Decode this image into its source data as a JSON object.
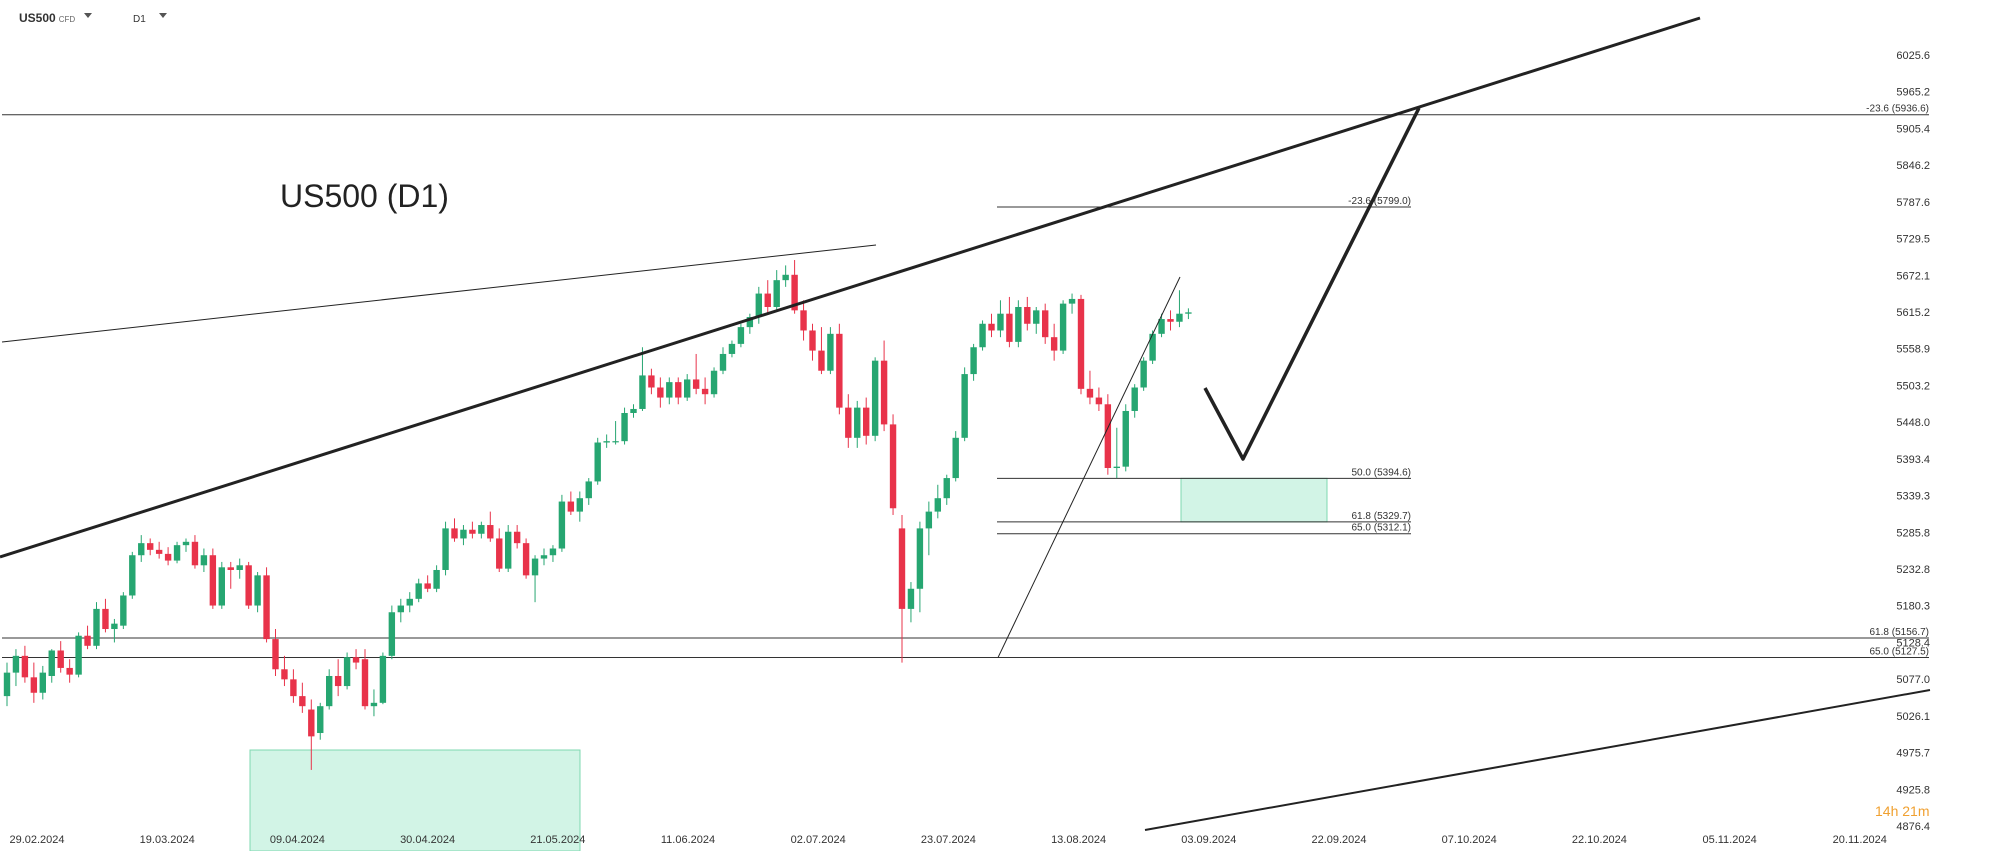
{
  "header": {
    "symbol": "US500",
    "symbol_type": "CFD",
    "timeframe": "D1"
  },
  "title": "US500 (D1)",
  "timer": "14h 21m",
  "colors": {
    "up_candle": "#26a671",
    "down_candle": "#e8334a",
    "zone_fill": "#d2f4e6",
    "zone_border": "#7fd8b0",
    "line": "#222222",
    "timer": "#f0a030"
  },
  "chart_data": {
    "type": "candlestick",
    "instrument": "US500",
    "timeframe": "D1",
    "y_ticks": [
      "6025.6",
      "5965.2",
      "5905.4",
      "5846.2",
      "5787.6",
      "5729.5",
      "5672.1",
      "5615.2",
      "5558.9",
      "5503.2",
      "5448.0",
      "5393.4",
      "5339.3",
      "5285.8",
      "5232.8",
      "5180.3",
      "5128.4",
      "5077.0",
      "5026.1",
      "4975.7",
      "4925.8",
      "4876.4"
    ],
    "x_ticks": [
      "29.02.2024",
      "19.03.2024",
      "09.04.2024",
      "30.04.2024",
      "21.05.2024",
      "11.06.2024",
      "02.07.2024",
      "23.07.2024",
      "13.08.2024",
      "03.09.2024",
      "22.09.2024",
      "07.10.2024",
      "22.10.2024",
      "05.11.2024",
      "20.11.2024"
    ],
    "fib_levels": [
      {
        "label": "-23.6 (5936.6)",
        "price": 5936.6
      },
      {
        "label": "-23.6 (5799.0)",
        "price": 5799.0
      },
      {
        "label": "50.0 (5394.6)",
        "price": 5394.6
      },
      {
        "label": "61.8 (5329.7)",
        "price": 5329.7
      },
      {
        "label": "65.0 (5312.1)",
        "price": 5312.1
      },
      {
        "label": "61.8 (5156.7)",
        "price": 5156.7
      },
      {
        "label": "65.0 (5127.5)",
        "price": 5127.5
      }
    ],
    "candles": [
      {
        "o": 5070,
        "h": 5120,
        "l": 5055,
        "c": 5105
      },
      {
        "o": 5105,
        "h": 5140,
        "l": 5085,
        "c": 5130
      },
      {
        "o": 5130,
        "h": 5145,
        "l": 5090,
        "c": 5098
      },
      {
        "o": 5098,
        "h": 5120,
        "l": 5060,
        "c": 5075
      },
      {
        "o": 5075,
        "h": 5115,
        "l": 5065,
        "c": 5105
      },
      {
        "o": 5100,
        "h": 5140,
        "l": 5090,
        "c": 5138
      },
      {
        "o": 5138,
        "h": 5152,
        "l": 5105,
        "c": 5112
      },
      {
        "o": 5112,
        "h": 5125,
        "l": 5090,
        "c": 5102
      },
      {
        "o": 5102,
        "h": 5165,
        "l": 5098,
        "c": 5160
      },
      {
        "o": 5160,
        "h": 5175,
        "l": 5140,
        "c": 5145
      },
      {
        "o": 5145,
        "h": 5210,
        "l": 5140,
        "c": 5200
      },
      {
        "o": 5200,
        "h": 5215,
        "l": 5165,
        "c": 5170
      },
      {
        "o": 5170,
        "h": 5185,
        "l": 5150,
        "c": 5178
      },
      {
        "o": 5175,
        "h": 5225,
        "l": 5170,
        "c": 5220
      },
      {
        "o": 5220,
        "h": 5285,
        "l": 5215,
        "c": 5280
      },
      {
        "o": 5280,
        "h": 5310,
        "l": 5270,
        "c": 5298
      },
      {
        "o": 5298,
        "h": 5305,
        "l": 5280,
        "c": 5288
      },
      {
        "o": 5288,
        "h": 5300,
        "l": 5275,
        "c": 5282
      },
      {
        "o": 5282,
        "h": 5292,
        "l": 5265,
        "c": 5272
      },
      {
        "o": 5272,
        "h": 5300,
        "l": 5268,
        "c": 5295
      },
      {
        "o": 5295,
        "h": 5305,
        "l": 5285,
        "c": 5300
      },
      {
        "o": 5300,
        "h": 5310,
        "l": 5260,
        "c": 5265
      },
      {
        "o": 5265,
        "h": 5290,
        "l": 5255,
        "c": 5280
      },
      {
        "o": 5280,
        "h": 5290,
        "l": 5200,
        "c": 5205
      },
      {
        "o": 5205,
        "h": 5270,
        "l": 5200,
        "c": 5262
      },
      {
        "o": 5262,
        "h": 5270,
        "l": 5230,
        "c": 5258
      },
      {
        "o": 5258,
        "h": 5275,
        "l": 5245,
        "c": 5265
      },
      {
        "o": 5265,
        "h": 5270,
        "l": 5200,
        "c": 5205
      },
      {
        "o": 5205,
        "h": 5255,
        "l": 5195,
        "c": 5250
      },
      {
        "o": 5250,
        "h": 5262,
        "l": 5150,
        "c": 5155
      },
      {
        "o": 5155,
        "h": 5170,
        "l": 5100,
        "c": 5110
      },
      {
        "o": 5110,
        "h": 5130,
        "l": 5085,
        "c": 5095
      },
      {
        "o": 5095,
        "h": 5110,
        "l": 5060,
        "c": 5070
      },
      {
        "o": 5070,
        "h": 5090,
        "l": 5045,
        "c": 5055
      },
      {
        "o": 5050,
        "h": 5065,
        "l": 4960,
        "c": 5010
      },
      {
        "o": 5015,
        "h": 5060,
        "l": 5005,
        "c": 5055
      },
      {
        "o": 5055,
        "h": 5110,
        "l": 5050,
        "c": 5100
      },
      {
        "o": 5100,
        "h": 5125,
        "l": 5070,
        "c": 5085
      },
      {
        "o": 5085,
        "h": 5135,
        "l": 5080,
        "c": 5128
      },
      {
        "o": 5128,
        "h": 5140,
        "l": 5110,
        "c": 5120
      },
      {
        "o": 5125,
        "h": 5140,
        "l": 5050,
        "c": 5055
      },
      {
        "o": 5055,
        "h": 5080,
        "l": 5040,
        "c": 5060
      },
      {
        "o": 5060,
        "h": 5135,
        "l": 5058,
        "c": 5130
      },
      {
        "o": 5130,
        "h": 5205,
        "l": 5125,
        "c": 5195
      },
      {
        "o": 5195,
        "h": 5215,
        "l": 5180,
        "c": 5205
      },
      {
        "o": 5205,
        "h": 5225,
        "l": 5195,
        "c": 5215
      },
      {
        "o": 5215,
        "h": 5245,
        "l": 5210,
        "c": 5238
      },
      {
        "o": 5238,
        "h": 5250,
        "l": 5225,
        "c": 5230
      },
      {
        "o": 5230,
        "h": 5265,
        "l": 5225,
        "c": 5258
      },
      {
        "o": 5258,
        "h": 5330,
        "l": 5250,
        "c": 5320
      },
      {
        "o": 5320,
        "h": 5335,
        "l": 5300,
        "c": 5305
      },
      {
        "o": 5305,
        "h": 5325,
        "l": 5295,
        "c": 5318
      },
      {
        "o": 5318,
        "h": 5330,
        "l": 5305,
        "c": 5312
      },
      {
        "o": 5312,
        "h": 5330,
        "l": 5305,
        "c": 5325
      },
      {
        "o": 5325,
        "h": 5345,
        "l": 5300,
        "c": 5305
      },
      {
        "o": 5305,
        "h": 5320,
        "l": 5255,
        "c": 5260
      },
      {
        "o": 5260,
        "h": 5325,
        "l": 5255,
        "c": 5315
      },
      {
        "o": 5315,
        "h": 5325,
        "l": 5290,
        "c": 5298
      },
      {
        "o": 5298,
        "h": 5305,
        "l": 5245,
        "c": 5250
      },
      {
        "o": 5250,
        "h": 5280,
        "l": 5210,
        "c": 5275
      },
      {
        "o": 5275,
        "h": 5290,
        "l": 5265,
        "c": 5280
      },
      {
        "o": 5280,
        "h": 5295,
        "l": 5270,
        "c": 5290
      },
      {
        "o": 5290,
        "h": 5370,
        "l": 5285,
        "c": 5360
      },
      {
        "o": 5360,
        "h": 5375,
        "l": 5340,
        "c": 5345
      },
      {
        "o": 5345,
        "h": 5375,
        "l": 5330,
        "c": 5365
      },
      {
        "o": 5365,
        "h": 5395,
        "l": 5355,
        "c": 5390
      },
      {
        "o": 5390,
        "h": 5455,
        "l": 5385,
        "c": 5448
      },
      {
        "o": 5448,
        "h": 5460,
        "l": 5440,
        "c": 5450
      },
      {
        "o": 5450,
        "h": 5480,
        "l": 5445,
        "c": 5450
      },
      {
        "o": 5450,
        "h": 5500,
        "l": 5445,
        "c": 5492
      },
      {
        "o": 5492,
        "h": 5505,
        "l": 5485,
        "c": 5498
      },
      {
        "o": 5498,
        "h": 5590,
        "l": 5495,
        "c": 5548
      },
      {
        "o": 5548,
        "h": 5558,
        "l": 5520,
        "c": 5530
      },
      {
        "o": 5530,
        "h": 5545,
        "l": 5500,
        "c": 5515
      },
      {
        "o": 5515,
        "h": 5545,
        "l": 5505,
        "c": 5538
      },
      {
        "o": 5538,
        "h": 5545,
        "l": 5505,
        "c": 5515
      },
      {
        "o": 5515,
        "h": 5550,
        "l": 5510,
        "c": 5542
      },
      {
        "o": 5542,
        "h": 5580,
        "l": 5520,
        "c": 5528
      },
      {
        "o": 5528,
        "h": 5545,
        "l": 5505,
        "c": 5520
      },
      {
        "o": 5520,
        "h": 5560,
        "l": 5515,
        "c": 5555
      },
      {
        "o": 5555,
        "h": 5590,
        "l": 5550,
        "c": 5580
      },
      {
        "o": 5580,
        "h": 5600,
        "l": 5575,
        "c": 5595
      },
      {
        "o": 5595,
        "h": 5625,
        "l": 5590,
        "c": 5620
      },
      {
        "o": 5620,
        "h": 5640,
        "l": 5610,
        "c": 5635
      },
      {
        "o": 5635,
        "h": 5680,
        "l": 5625,
        "c": 5670
      },
      {
        "o": 5670,
        "h": 5690,
        "l": 5640,
        "c": 5650
      },
      {
        "o": 5650,
        "h": 5705,
        "l": 5645,
        "c": 5690
      },
      {
        "o": 5690,
        "h": 5712,
        "l": 5680,
        "c": 5698
      },
      {
        "o": 5698,
        "h": 5720,
        "l": 5640,
        "c": 5645
      },
      {
        "o": 5645,
        "h": 5660,
        "l": 5600,
        "c": 5615
      },
      {
        "o": 5615,
        "h": 5625,
        "l": 5570,
        "c": 5585
      },
      {
        "o": 5585,
        "h": 5620,
        "l": 5550,
        "c": 5555
      },
      {
        "o": 5555,
        "h": 5620,
        "l": 5550,
        "c": 5610
      },
      {
        "o": 5610,
        "h": 5625,
        "l": 5490,
        "c": 5500
      },
      {
        "o": 5500,
        "h": 5520,
        "l": 5440,
        "c": 5455
      },
      {
        "o": 5455,
        "h": 5510,
        "l": 5440,
        "c": 5500
      },
      {
        "o": 5500,
        "h": 5515,
        "l": 5445,
        "c": 5458
      },
      {
        "o": 5458,
        "h": 5575,
        "l": 5450,
        "c": 5570
      },
      {
        "o": 5570,
        "h": 5600,
        "l": 5465,
        "c": 5475
      },
      {
        "o": 5475,
        "h": 5490,
        "l": 5340,
        "c": 5350
      },
      {
        "o": 5320,
        "h": 5340,
        "l": 5120,
        "c": 5200
      },
      {
        "o": 5200,
        "h": 5240,
        "l": 5180,
        "c": 5230
      },
      {
        "o": 5230,
        "h": 5330,
        "l": 5195,
        "c": 5320
      },
      {
        "o": 5320,
        "h": 5360,
        "l": 5280,
        "c": 5345
      },
      {
        "o": 5345,
        "h": 5385,
        "l": 5335,
        "c": 5365
      },
      {
        "o": 5365,
        "h": 5400,
        "l": 5355,
        "c": 5395
      },
      {
        "o": 5395,
        "h": 5465,
        "l": 5390,
        "c": 5455
      },
      {
        "o": 5455,
        "h": 5560,
        "l": 5450,
        "c": 5550
      },
      {
        "o": 5550,
        "h": 5595,
        "l": 5540,
        "c": 5590
      },
      {
        "o": 5590,
        "h": 5630,
        "l": 5585,
        "c": 5625
      },
      {
        "o": 5625,
        "h": 5640,
        "l": 5605,
        "c": 5615
      },
      {
        "o": 5615,
        "h": 5660,
        "l": 5605,
        "c": 5640
      },
      {
        "o": 5640,
        "h": 5665,
        "l": 5590,
        "c": 5598
      },
      {
        "o": 5598,
        "h": 5660,
        "l": 5590,
        "c": 5650
      },
      {
        "o": 5650,
        "h": 5665,
        "l": 5615,
        "c": 5625
      },
      {
        "o": 5625,
        "h": 5650,
        "l": 5610,
        "c": 5645
      },
      {
        "o": 5645,
        "h": 5655,
        "l": 5595,
        "c": 5605
      },
      {
        "o": 5605,
        "h": 5625,
        "l": 5570,
        "c": 5585
      },
      {
        "o": 5585,
        "h": 5660,
        "l": 5580,
        "c": 5655
      },
      {
        "o": 5655,
        "h": 5670,
        "l": 5640,
        "c": 5662
      },
      {
        "o": 5662,
        "h": 5668,
        "l": 5520,
        "c": 5528
      },
      {
        "o": 5528,
        "h": 5555,
        "l": 5505,
        "c": 5515
      },
      {
        "o": 5515,
        "h": 5530,
        "l": 5495,
        "c": 5505
      },
      {
        "o": 5505,
        "h": 5520,
        "l": 5400,
        "c": 5410
      },
      {
        "o": 5410,
        "h": 5470,
        "l": 5395,
        "c": 5412
      },
      {
        "o": 5412,
        "h": 5505,
        "l": 5405,
        "c": 5495
      },
      {
        "o": 5495,
        "h": 5535,
        "l": 5485,
        "c": 5530
      },
      {
        "o": 5530,
        "h": 5575,
        "l": 5525,
        "c": 5570
      },
      {
        "o": 5570,
        "h": 5615,
        "l": 5565,
        "c": 5610
      },
      {
        "o": 5610,
        "h": 5640,
        "l": 5605,
        "c": 5632
      },
      {
        "o": 5632,
        "h": 5645,
        "l": 5615,
        "c": 5628
      },
      {
        "o": 5628,
        "h": 5675,
        "l": 5620,
        "c": 5640
      },
      {
        "o": 5640,
        "h": 5648,
        "l": 5632,
        "c": 5642
      }
    ]
  }
}
